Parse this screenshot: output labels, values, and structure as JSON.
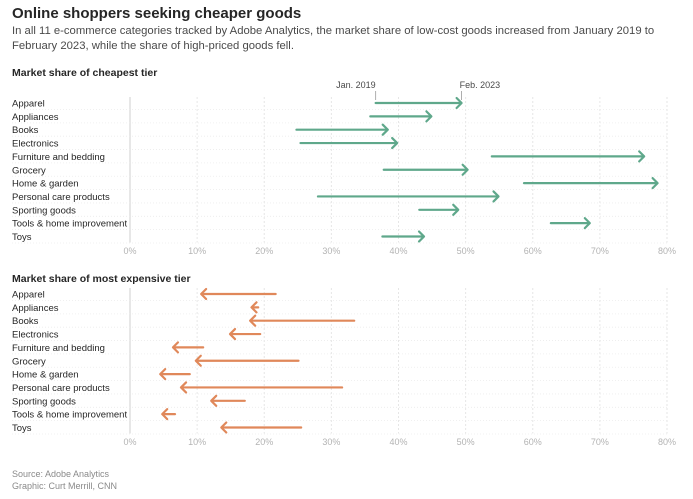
{
  "header": {
    "title": "Online shoppers seeking cheaper goods",
    "subtitle": "In all 11 e-commerce categories tracked by Adobe Analytics, the market share of low-cost goods increased from January 2019 to February 2023, while the share of high-priced goods fell."
  },
  "footer": {
    "source": "Source: Adobe Analytics",
    "credit": "Graphic: Curt Merrill, CNN"
  },
  "colors": {
    "cheap": "#5fa88b",
    "expensive": "#e0885a",
    "grid": "#e6e6e6",
    "tick": "#b3b3b3"
  },
  "chart_data": [
    {
      "type": "arrow",
      "title": "Market share of cheapest tier",
      "start_label": "Jan. 2019",
      "end_label": "Feb. 2023",
      "xlim": [
        0,
        80
      ],
      "xticks": [
        "0%",
        "10%",
        "20%",
        "30%",
        "40%",
        "50%",
        "60%",
        "70%",
        "80%"
      ],
      "categories": [
        "Apparel",
        "Appliances",
        "Books",
        "Electronics",
        "Furniture and bedding",
        "Grocery",
        "Home & garden",
        "Personal care products",
        "Sporting goods",
        "Tools & home improvement",
        "Toys"
      ],
      "series": [
        {
          "name": "Jan. 2019",
          "values": [
            36.6,
            35.8,
            24.8,
            25.4,
            53.9,
            37.8,
            58.7,
            28.0,
            43.1,
            62.7,
            37.6
          ]
        },
        {
          "name": "Feb. 2023",
          "values": [
            49.4,
            44.9,
            38.4,
            39.8,
            76.6,
            50.3,
            78.6,
            54.9,
            48.9,
            68.5,
            43.8
          ]
        }
      ]
    },
    {
      "type": "arrow",
      "title": "Market share of most expensive tier",
      "xlim": [
        0,
        80
      ],
      "xticks": [
        "0%",
        "10%",
        "20%",
        "30%",
        "40%",
        "50%",
        "60%",
        "70%",
        "80%"
      ],
      "categories": [
        "Apparel",
        "Appliances",
        "Books",
        "Electronics",
        "Furniture and bedding",
        "Grocery",
        "Home & garden",
        "Personal care products",
        "Sporting goods",
        "Tools & home improvement",
        "Toys"
      ],
      "series": [
        {
          "name": "Jan. 2019",
          "values": [
            21.7,
            19.1,
            33.4,
            19.4,
            10.9,
            25.1,
            8.9,
            31.6,
            17.1,
            6.7,
            25.5
          ]
        },
        {
          "name": "Feb. 2023",
          "values": [
            10.6,
            18.1,
            17.9,
            14.9,
            6.4,
            9.8,
            4.5,
            7.6,
            12.1,
            4.8,
            13.6
          ]
        }
      ]
    }
  ]
}
